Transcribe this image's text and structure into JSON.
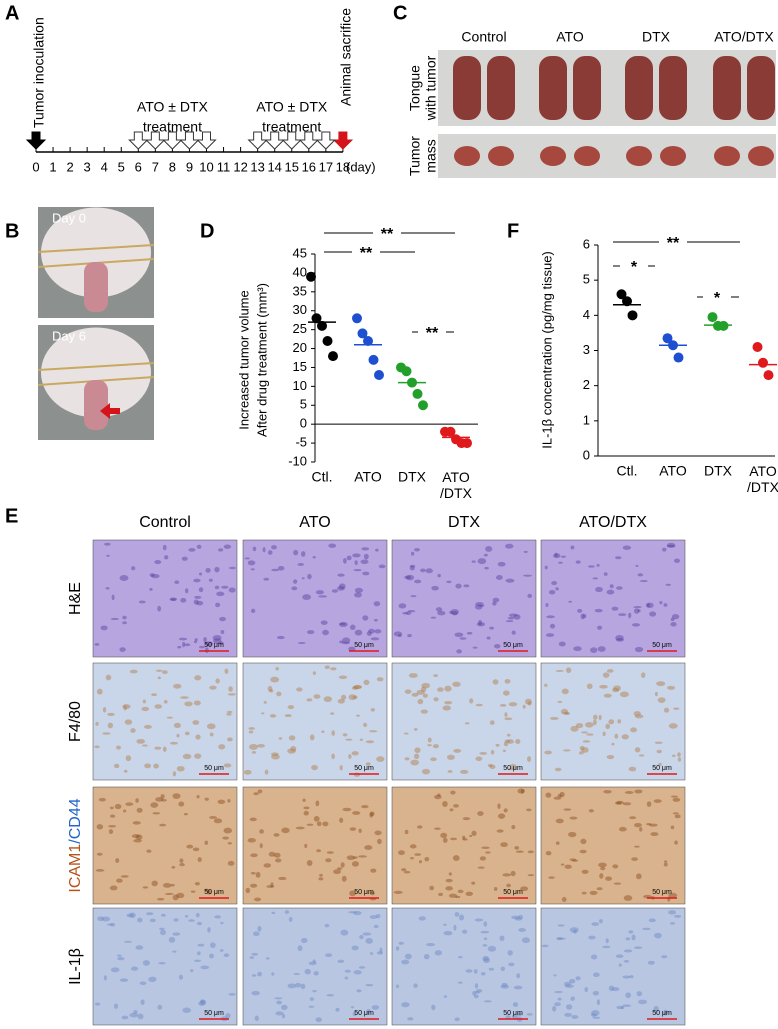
{
  "panel_labels": [
    "A",
    "B",
    "C",
    "D",
    "E",
    "F"
  ],
  "timeline": {
    "start_label": "Tumor inoculation",
    "treatment_label": [
      "ATO ± DTX",
      "treatment"
    ],
    "end_label": "Animal sacrifice",
    "days": [
      0,
      1,
      2,
      3,
      4,
      5,
      6,
      7,
      8,
      9,
      10,
      11,
      12,
      13,
      14,
      15,
      16,
      17,
      18
    ],
    "unit": "(day)",
    "treatment_days": [
      [
        6,
        7,
        8,
        9,
        10
      ],
      [
        13,
        14,
        15,
        16,
        17
      ]
    ]
  },
  "mouse_photos": {
    "labels": [
      "Day 0",
      "Day 6"
    ]
  },
  "tumor_photos": {
    "columns": [
      "Control",
      "ATO",
      "DTX",
      "ATO/DTX"
    ],
    "rows": [
      [
        "Tongue",
        "with tumor"
      ],
      [
        "Tumor",
        "mass"
      ]
    ]
  },
  "chart_data": [
    {
      "type": "scatter",
      "y_label": [
        "Increased tumor volume",
        "After drug treatment (mm³)"
      ],
      "categories": [
        "Ctl.",
        "ATO",
        "DTX",
        "ATO /DTX"
      ],
      "colors": [
        "#000000",
        "#1f4fd1",
        "#22a02a",
        "#e0191c"
      ],
      "values": [
        [
          39,
          28,
          26,
          22,
          18
        ],
        [
          28,
          24,
          22,
          17,
          13
        ],
        [
          15,
          14,
          11,
          8,
          5
        ],
        [
          -2,
          -2,
          -4,
          -5,
          -5
        ]
      ],
      "means": [
        27,
        21,
        11,
        -3.5
      ],
      "ylim": [
        -10,
        45
      ],
      "yticks": [
        -10,
        -5,
        0,
        5,
        10,
        15,
        20,
        25,
        30,
        35,
        40,
        45
      ],
      "annotations": [
        "**",
        "**",
        "**"
      ]
    },
    {
      "type": "scatter",
      "y_label": [
        "IL-1β concentration (pg/mg tissue)"
      ],
      "categories": [
        "Ctl.",
        "ATO",
        "DTX",
        "ATO /DTX"
      ],
      "colors": [
        "#000000",
        "#1f4fd1",
        "#22a02a",
        "#e0191c"
      ],
      "values": [
        [
          4.6,
          4.4,
          4.0
        ],
        [
          3.35,
          3.15,
          2.8
        ],
        [
          3.95,
          3.7,
          3.7
        ],
        [
          3.1,
          2.65,
          2.3
        ]
      ],
      "means": [
        4.3,
        3.15,
        3.72,
        2.6
      ],
      "ylim": [
        0,
        6
      ],
      "yticks": [
        0,
        1,
        2,
        3,
        4,
        5,
        6
      ],
      "annotations": [
        "**",
        "*",
        "*"
      ]
    }
  ],
  "histology": {
    "columns": [
      "Control",
      "ATO",
      "DTX",
      "ATO/DTX"
    ],
    "rows": [
      [
        {
          "text": "H&E",
          "color": "#000000"
        }
      ],
      [
        {
          "text": "F4/80",
          "color": "#000000"
        }
      ],
      [
        {
          "text": "ICAM1",
          "color": "#b5541c"
        },
        {
          "text": "/CD44",
          "color": "#2266cc"
        }
      ],
      [
        {
          "text": "IL-1β",
          "color": "#000000"
        }
      ]
    ],
    "scale_bar": "50 μm"
  }
}
